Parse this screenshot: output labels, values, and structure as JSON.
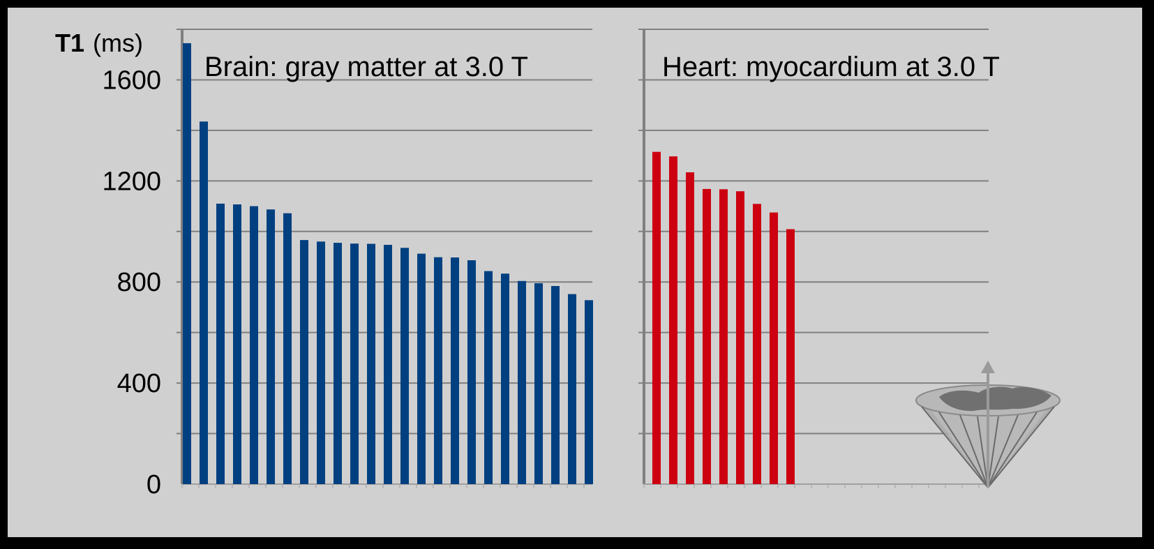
{
  "chart_data": [
    {
      "type": "bar",
      "title": "Brain: gray matter at 3.0 T",
      "ylabel_bold": "T1",
      "ylabel_unit": "(ms)",
      "ylim": [
        0,
        1800
      ],
      "yticks": [
        0,
        400,
        800,
        1200,
        1600
      ],
      "grid": true,
      "color": "#004080",
      "values": [
        1745,
        1435,
        1110,
        1107,
        1100,
        1087,
        1072,
        966,
        960,
        955,
        952,
        951,
        947,
        935,
        912,
        898,
        897,
        886,
        843,
        833,
        804,
        795,
        784,
        752,
        728
      ]
    },
    {
      "type": "bar",
      "title": "Heart: myocardium at 3.0 T",
      "ylim": [
        0,
        1800
      ],
      "grid": true,
      "color": "#cc0010",
      "values": [
        1315,
        1297,
        1234,
        1168,
        1167,
        1159,
        1109,
        1075,
        1009
      ]
    }
  ],
  "icons": {
    "logo": "spin-cone-globe-icon"
  }
}
